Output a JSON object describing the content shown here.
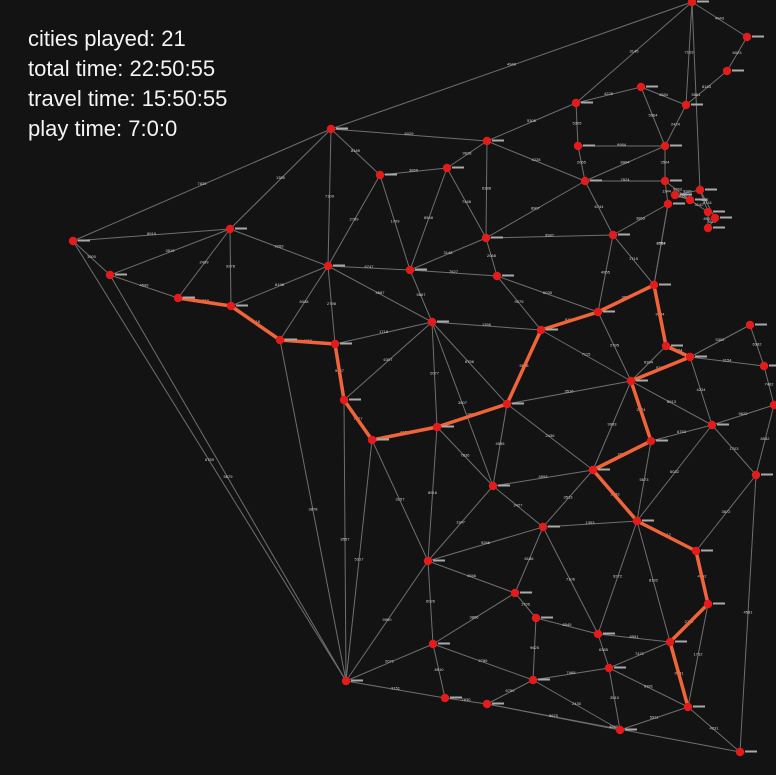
{
  "stats": {
    "cities_played": "cities played: 21",
    "total_time": "total time: 22:50:55",
    "travel_time": "travel time: 15:50:55",
    "play_time": "play time: 7:0:0"
  },
  "colors": {
    "background": "#131313",
    "edge": "#6f6f6f",
    "route": "#f0643a",
    "city": "#e31b1b"
  }
}
